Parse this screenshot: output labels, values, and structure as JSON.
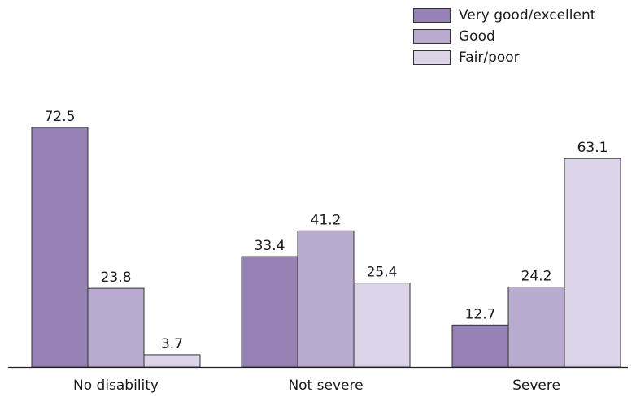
{
  "chart_data": {
    "type": "bar",
    "categories": [
      "No disability",
      "Not severe",
      "Severe"
    ],
    "series": [
      {
        "name": "Very good/excellent",
        "values": [
          72.5,
          33.4,
          12.7
        ],
        "color": "#9581b3"
      },
      {
        "name": "Good",
        "values": [
          23.8,
          41.2,
          24.2
        ],
        "color": "#b9abd0"
      },
      {
        "name": "Fair/poor",
        "values": [
          3.7,
          25.4,
          63.1
        ],
        "color": "#dcd5e9"
      }
    ],
    "ylim": [
      0,
      80
    ],
    "legend": "top-right",
    "grid": false,
    "data_labels": true
  }
}
